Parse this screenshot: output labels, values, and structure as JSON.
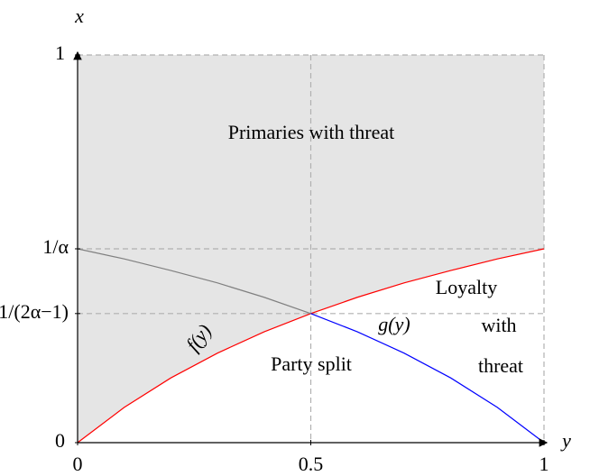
{
  "chart_data": {
    "type": "line",
    "xlabel": "y",
    "ylabel": "x",
    "xlim": [
      0,
      1
    ],
    "ylim": [
      0,
      1
    ],
    "xticks": [
      0,
      0.5,
      1
    ],
    "yticks": [
      0,
      {
        "value": 0.333,
        "label": "1/(2α−1)"
      },
      {
        "value": 0.5,
        "label": "1/α"
      },
      1
    ],
    "grid": true,
    "shade_color": "#e5e5e5",
    "series": [
      {
        "name": "f(y)",
        "color": "#ff0000",
        "x": [
          0,
          0.1,
          0.2,
          0.3,
          0.4,
          0.5,
          0.6,
          0.7,
          0.8,
          0.9,
          1
        ],
        "values": [
          0,
          0.091,
          0.167,
          0.231,
          0.286,
          0.333,
          0.375,
          0.412,
          0.444,
          0.474,
          0.5
        ]
      },
      {
        "color": "#808080",
        "x": [
          0,
          0.1,
          0.2,
          0.3,
          0.4,
          0.5
        ],
        "values": [
          0.5,
          0.474,
          0.444,
          0.412,
          0.375,
          0.333
        ]
      },
      {
        "name": "g(y)",
        "color": "#0000ff",
        "x": [
          0.5,
          0.6,
          0.7,
          0.8,
          0.9,
          1
        ],
        "values": [
          0.333,
          0.286,
          0.231,
          0.167,
          0.091,
          0
        ]
      }
    ],
    "annotations": [
      "Primaries with threat",
      "Party split",
      "Loyalty",
      "with",
      "threat"
    ]
  }
}
